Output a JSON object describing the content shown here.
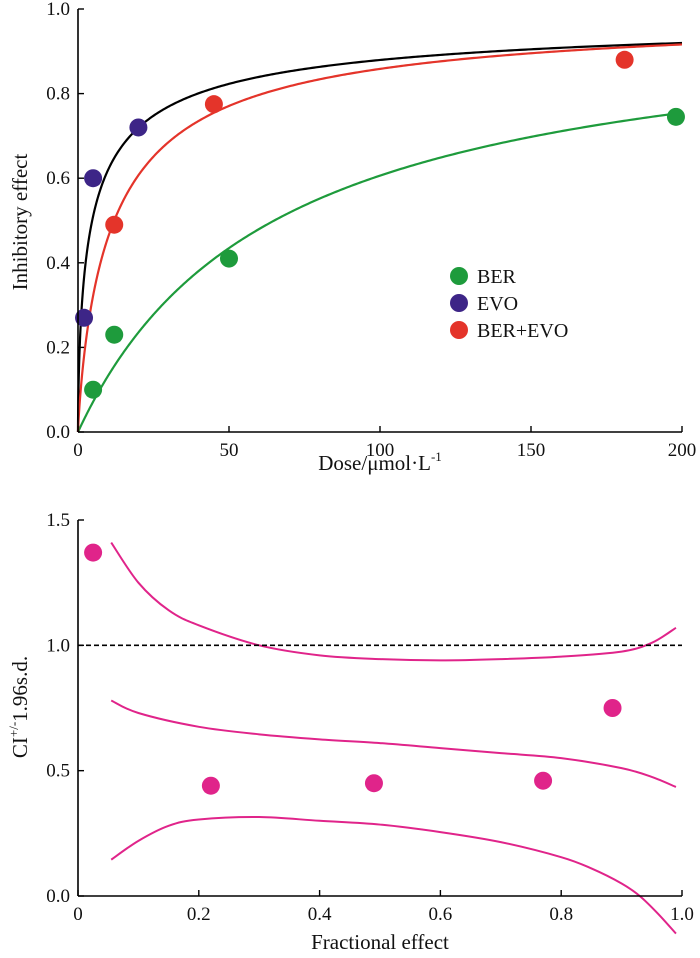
{
  "chart_data": [
    {
      "type": "scatter",
      "xlabel": "Dose/μmol·L",
      "xlabel_sup": "-1",
      "ylabel": "Inhibitory effect",
      "xlim": [
        0,
        200
      ],
      "ylim": [
        0,
        1.0
      ],
      "xticks": [
        "0",
        "50",
        "100",
        "150",
        "200"
      ],
      "yticks": [
        "0.0",
        "0.2",
        "0.4",
        "0.6",
        "0.8",
        "1.0"
      ],
      "legend_position": "center-right",
      "series": [
        {
          "name": "BER",
          "color": "#1e9b3c",
          "line_color": "#1e9b3c",
          "points": [
            [
              5,
              0.1
            ],
            [
              12,
              0.23
            ],
            [
              50,
              0.41
            ],
            [
              198,
              0.745
            ]
          ],
          "curve": {
            "model": "median-effect",
            "Dm": 65,
            "m": 1.0
          }
        },
        {
          "name": "EVO",
          "color": "#3d2587",
          "line_color": "#000000",
          "points": [
            [
              2,
              0.27
            ],
            [
              5,
              0.6
            ],
            [
              20,
              0.72
            ]
          ],
          "curve": {
            "model": "median-effect",
            "Dm": 4.7,
            "m": 0.65
          }
        },
        {
          "name": "BER+EVO",
          "color": "#e4342a",
          "line_color": "#e4342a",
          "points": [
            [
              12,
              0.49
            ],
            [
              45,
              0.775
            ],
            [
              181,
              0.88
            ]
          ],
          "curve": {
            "model": "median-effect",
            "Dm": 12,
            "m": 0.85
          }
        }
      ]
    },
    {
      "type": "scatter",
      "xlabel": "Fractional effect",
      "ylabel": "CI",
      "ylabel_sup": "+/-",
      "ylabel_suffix": "1.96s.d.",
      "xlim": [
        0,
        1.0
      ],
      "ylim": [
        0,
        1.5
      ],
      "xticks": [
        "0",
        "0.2",
        "0.4",
        "0.6",
        "0.8",
        "1.0"
      ],
      "yticks": [
        "0.0",
        "0.5",
        "1.0",
        "1.5"
      ],
      "reference_line": {
        "y": 1.0,
        "style": "dashed"
      },
      "point_color": "#e0248a",
      "line_color": "#e0248a",
      "points": [
        [
          0.025,
          1.37
        ],
        [
          0.22,
          0.44
        ],
        [
          0.49,
          0.45
        ],
        [
          0.77,
          0.46
        ],
        [
          0.885,
          0.75
        ]
      ],
      "lines": [
        {
          "name": "upper-bound",
          "points": [
            [
              0.055,
              1.41
            ],
            [
              0.1,
              1.25
            ],
            [
              0.15,
              1.14
            ],
            [
              0.2,
              1.08
            ],
            [
              0.3,
              1.0
            ],
            [
              0.4,
              0.96
            ],
            [
              0.5,
              0.945
            ],
            [
              0.6,
              0.94
            ],
            [
              0.7,
              0.945
            ],
            [
              0.8,
              0.955
            ],
            [
              0.9,
              0.975
            ],
            [
              0.95,
              1.01
            ],
            [
              0.99,
              1.07
            ]
          ]
        },
        {
          "name": "ci-mean",
          "points": [
            [
              0.055,
              0.78
            ],
            [
              0.1,
              0.73
            ],
            [
              0.2,
              0.675
            ],
            [
              0.3,
              0.645
            ],
            [
              0.4,
              0.625
            ],
            [
              0.5,
              0.61
            ],
            [
              0.6,
              0.59
            ],
            [
              0.7,
              0.57
            ],
            [
              0.8,
              0.55
            ],
            [
              0.9,
              0.51
            ],
            [
              0.95,
              0.475
            ],
            [
              0.99,
              0.435
            ]
          ]
        },
        {
          "name": "lower-bound",
          "points": [
            [
              0.055,
              0.145
            ],
            [
              0.1,
              0.22
            ],
            [
              0.15,
              0.28
            ],
            [
              0.2,
              0.305
            ],
            [
              0.3,
              0.315
            ],
            [
              0.4,
              0.3
            ],
            [
              0.5,
              0.285
            ],
            [
              0.6,
              0.255
            ],
            [
              0.7,
              0.215
            ],
            [
              0.8,
              0.155
            ],
            [
              0.85,
              0.11
            ],
            [
              0.9,
              0.05
            ],
            [
              0.93,
              0.0
            ],
            [
              0.96,
              -0.07
            ],
            [
              0.99,
              -0.15
            ]
          ]
        }
      ]
    }
  ]
}
